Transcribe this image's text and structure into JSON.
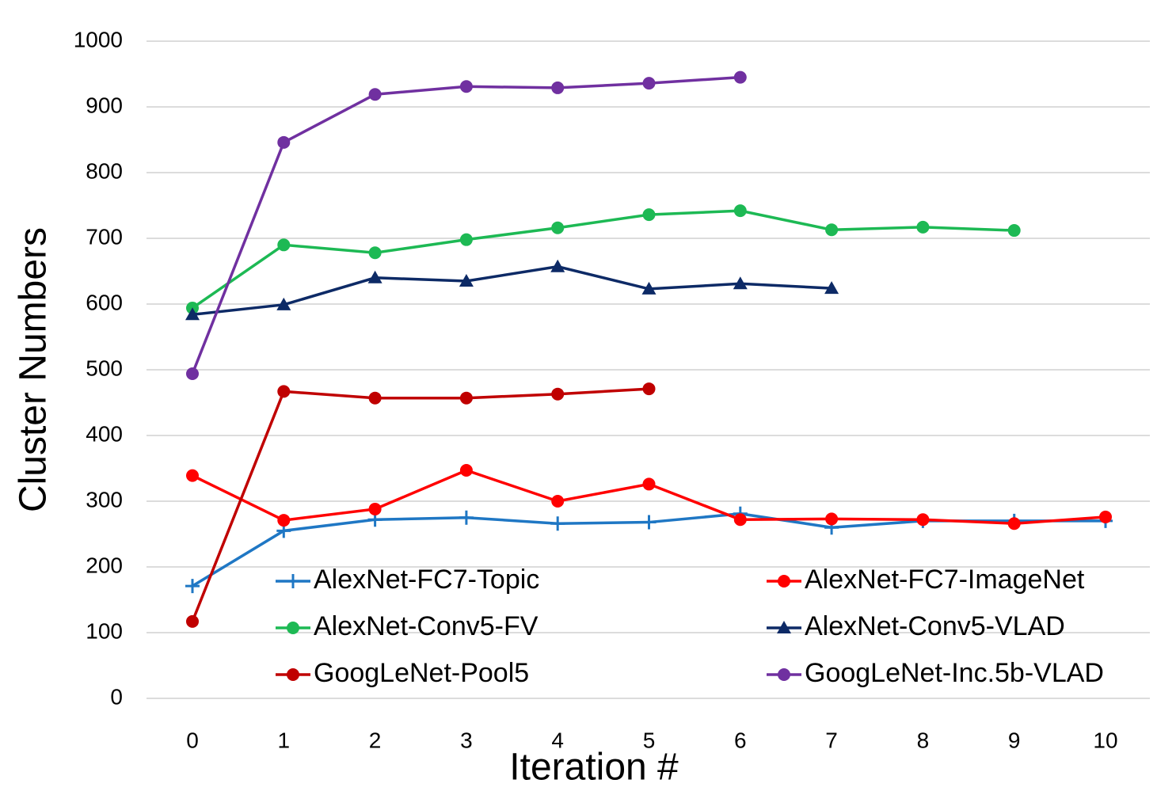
{
  "chart_data": {
    "type": "line",
    "x_label": "Iteration #",
    "y_label": "Cluster Numbers",
    "categories": [
      "0",
      "1",
      "2",
      "3",
      "4",
      "5",
      "6",
      "7",
      "8",
      "9",
      "10"
    ],
    "ylim": [
      0,
      1000
    ],
    "yticks": [
      0,
      100,
      200,
      300,
      400,
      500,
      600,
      700,
      800,
      900,
      1000
    ],
    "grid": true,
    "legend_position": "lower",
    "series": [
      {
        "name": "AlexNet-FC7-Topic",
        "color": "#1f77c4",
        "marker": "plus",
        "values": [
          171,
          255,
          272,
          275,
          266,
          268,
          281,
          260,
          270,
          270,
          270
        ]
      },
      {
        "name": "AlexNet-FC7-ImageNet",
        "color": "#ff0000",
        "marker": "circle",
        "values": [
          339,
          271,
          288,
          347,
          300,
          326,
          272,
          273,
          272,
          266,
          276
        ]
      },
      {
        "name": "AlexNet-Conv5-FV",
        "color": "#1db954",
        "marker": "circle",
        "values": [
          594,
          690,
          678,
          698,
          716,
          736,
          742,
          713,
          717,
          712,
          null
        ]
      },
      {
        "name": "AlexNet-Conv5-VLAD",
        "color": "#0d2a66",
        "marker": "triangle",
        "values": [
          584,
          599,
          640,
          635,
          657,
          623,
          631,
          624,
          null,
          null,
          null
        ]
      },
      {
        "name": "GoogLeNet-Pool5",
        "color": "#c00000",
        "marker": "circle",
        "values": [
          117,
          467,
          457,
          457,
          463,
          471,
          null,
          null,
          null,
          null,
          null
        ]
      },
      {
        "name": "GoogLeNet-Inc.5b-VLAD",
        "color": "#7030a0",
        "marker": "circle",
        "values": [
          494,
          846,
          919,
          931,
          929,
          936,
          945,
          null,
          null,
          null,
          null
        ]
      }
    ]
  }
}
